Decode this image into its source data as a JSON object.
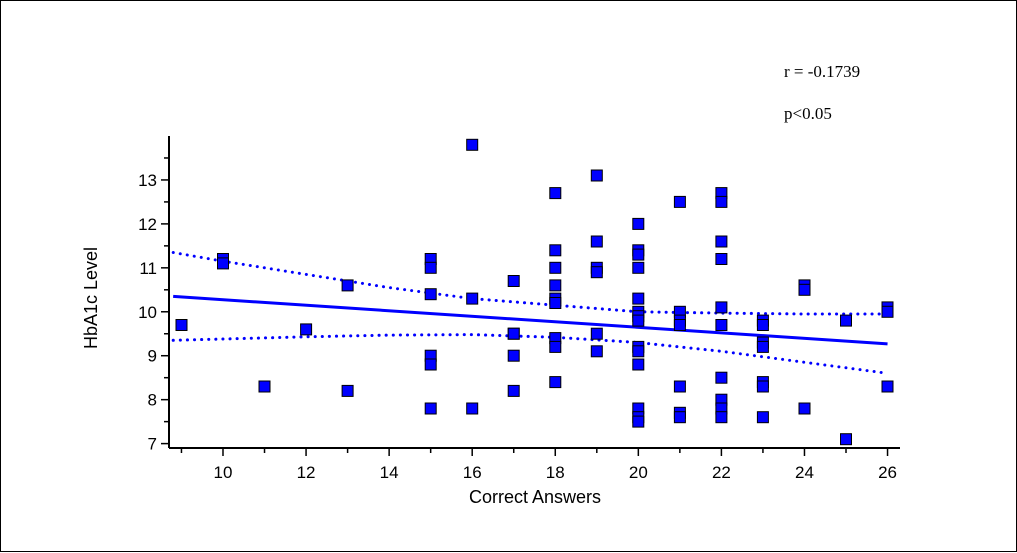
{
  "chart_data": {
    "type": "scatter",
    "title": "",
    "xlabel": "Correct Answers",
    "ylabel": "HbA1c Level",
    "xlim": [
      8.7,
      26.3
    ],
    "ylim": [
      6.9,
      14.0
    ],
    "xticks": [
      10,
      12,
      14,
      16,
      18,
      20,
      22,
      24,
      26
    ],
    "yticks": [
      7,
      8,
      9,
      10,
      11,
      12,
      13
    ],
    "annotations": [
      "r = -0.1739",
      "p<0.05"
    ],
    "colors": {
      "point": "#0000ff",
      "line": "#0000ff"
    },
    "grid": false,
    "points": [
      [
        9,
        9.7
      ],
      [
        10,
        11.2
      ],
      [
        10,
        11.1
      ],
      [
        11,
        8.3
      ],
      [
        12,
        9.6
      ],
      [
        13,
        10.6
      ],
      [
        13,
        8.2
      ],
      [
        15,
        11.2
      ],
      [
        15,
        11.0
      ],
      [
        15,
        10.4
      ],
      [
        15,
        9.0
      ],
      [
        15,
        8.8
      ],
      [
        15,
        7.8
      ],
      [
        16,
        13.8
      ],
      [
        16,
        10.3
      ],
      [
        16,
        7.8
      ],
      [
        17,
        10.7
      ],
      [
        17,
        9.5
      ],
      [
        17,
        9.5
      ],
      [
        17,
        9.0
      ],
      [
        17,
        8.2
      ],
      [
        18,
        12.7
      ],
      [
        18,
        11.4
      ],
      [
        18,
        11.0
      ],
      [
        18,
        10.6
      ],
      [
        18,
        10.3
      ],
      [
        18,
        10.2
      ],
      [
        18,
        9.4
      ],
      [
        18,
        9.2
      ],
      [
        18,
        8.4
      ],
      [
        19,
        13.1
      ],
      [
        19,
        11.6
      ],
      [
        19,
        11.0
      ],
      [
        19,
        10.9
      ],
      [
        19,
        9.5
      ],
      [
        19,
        9.1
      ],
      [
        20,
        12.0
      ],
      [
        20,
        11.4
      ],
      [
        20,
        11.3
      ],
      [
        20,
        11.0
      ],
      [
        20,
        10.3
      ],
      [
        20,
        10.0
      ],
      [
        20,
        9.9
      ],
      [
        20,
        9.8
      ],
      [
        20,
        9.2
      ],
      [
        20,
        9.1
      ],
      [
        20,
        8.8
      ],
      [
        20,
        7.8
      ],
      [
        20,
        7.6
      ],
      [
        20,
        7.5
      ],
      [
        21,
        12.5
      ],
      [
        21,
        10.0
      ],
      [
        21,
        9.8
      ],
      [
        21,
        9.7
      ],
      [
        21,
        8.3
      ],
      [
        21,
        7.7
      ],
      [
        21,
        7.6
      ],
      [
        22,
        12.7
      ],
      [
        22,
        12.5
      ],
      [
        22,
        11.6
      ],
      [
        22,
        11.2
      ],
      [
        22,
        10.1
      ],
      [
        22,
        9.7
      ],
      [
        22,
        8.5
      ],
      [
        22,
        8.0
      ],
      [
        22,
        7.8
      ],
      [
        22,
        7.6
      ],
      [
        23,
        9.8
      ],
      [
        23,
        9.7
      ],
      [
        23,
        9.3
      ],
      [
        23,
        9.2
      ],
      [
        23,
        8.4
      ],
      [
        23,
        8.3
      ],
      [
        23,
        7.6
      ],
      [
        24,
        10.6
      ],
      [
        24,
        10.5
      ],
      [
        24,
        7.8
      ],
      [
        25,
        9.8
      ],
      [
        25,
        7.1
      ],
      [
        26,
        10.1
      ],
      [
        26,
        10.0
      ],
      [
        26,
        8.3
      ]
    ],
    "fit_line": [
      [
        8.8,
        10.35
      ],
      [
        26,
        9.27
      ]
    ],
    "ci_upper": [
      [
        8.8,
        11.35
      ],
      [
        10,
        11.15
      ],
      [
        12,
        10.85
      ],
      [
        14,
        10.55
      ],
      [
        16,
        10.3
      ],
      [
        18,
        10.15
      ],
      [
        20,
        10.0
      ],
      [
        22,
        9.97
      ],
      [
        24,
        9.95
      ],
      [
        26,
        9.95
      ]
    ],
    "ci_lower": [
      [
        8.8,
        9.35
      ],
      [
        10,
        9.38
      ],
      [
        12,
        9.43
      ],
      [
        14,
        9.47
      ],
      [
        16,
        9.48
      ],
      [
        18,
        9.42
      ],
      [
        20,
        9.3
      ],
      [
        22,
        9.1
      ],
      [
        24,
        8.85
      ],
      [
        26,
        8.6
      ]
    ]
  }
}
